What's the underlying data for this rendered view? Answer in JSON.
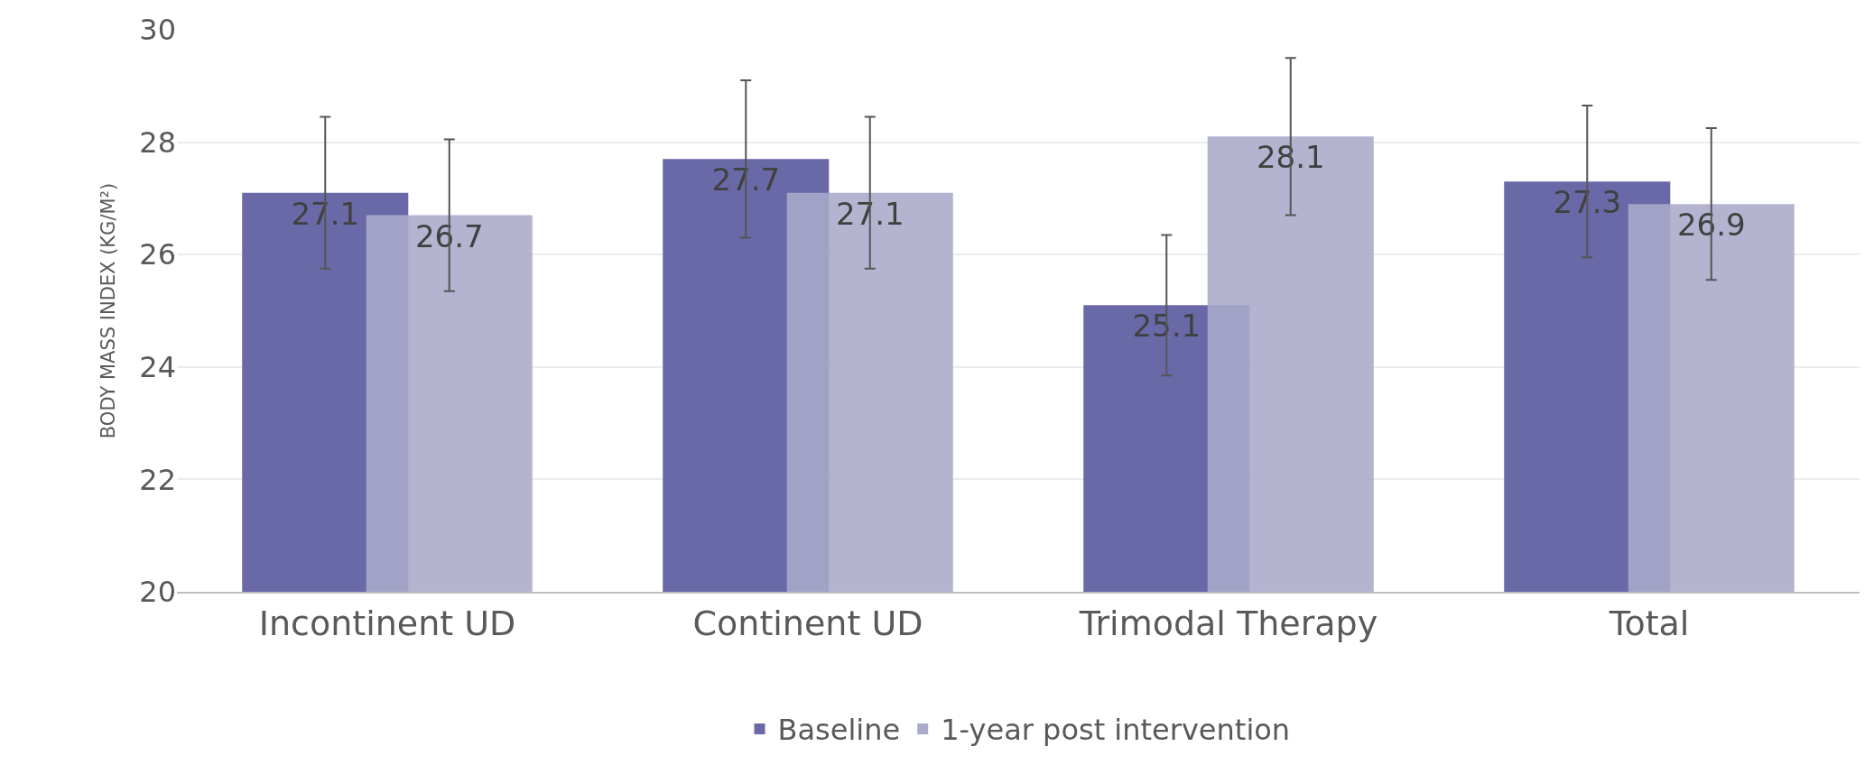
{
  "chart_data": {
    "type": "bar",
    "ylabel": "BODY MASS INDEX (KG/M²)",
    "categories": [
      "Incontinent UD",
      "Continent UD",
      "Trimodal Therapy",
      "Total"
    ],
    "series": [
      {
        "name": "Baseline",
        "color": "#6a69a8",
        "values": [
          27.1,
          27.7,
          25.1,
          27.3
        ],
        "errors": [
          1.35,
          1.4,
          1.25,
          1.35
        ]
      },
      {
        "name": "1-year post intervention",
        "color": "#aaaacb",
        "values": [
          26.7,
          27.1,
          28.1,
          26.9
        ],
        "errors": [
          1.35,
          1.35,
          1.4,
          1.35
        ]
      }
    ],
    "ylim": [
      20,
      30
    ],
    "yticks": [
      20,
      22,
      24,
      26,
      28,
      30
    ],
    "grid": "y",
    "legend": "bottom",
    "data_labels": true
  }
}
